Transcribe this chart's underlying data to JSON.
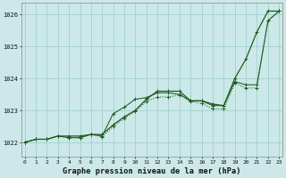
{
  "background_color": "#cce8e8",
  "grid_color": "#99cccc",
  "line_color": "#1e5c1e",
  "xlim_min": -0.3,
  "xlim_max": 23.3,
  "ylim_min": 1021.55,
  "ylim_max": 1026.35,
  "yticks": [
    1022,
    1023,
    1024,
    1025,
    1026
  ],
  "xticks": [
    0,
    1,
    2,
    3,
    4,
    5,
    6,
    7,
    8,
    9,
    10,
    11,
    12,
    13,
    14,
    15,
    16,
    17,
    18,
    19,
    20,
    21,
    22,
    23
  ],
  "xlabel": "Graphe pression niveau de la mer (hPa)",
  "line1_y": [
    1022.0,
    1022.1,
    1022.1,
    1022.2,
    1022.2,
    1022.2,
    1022.25,
    1022.25,
    1022.55,
    1022.8,
    1023.0,
    1023.35,
    1023.6,
    1023.6,
    1023.6,
    1023.3,
    1023.3,
    1023.2,
    1023.15,
    1024.0,
    1024.6,
    1025.45,
    1026.1,
    1026.1
  ],
  "line2_y": [
    1022.0,
    1022.1,
    1022.1,
    1022.2,
    1022.15,
    1022.15,
    1022.25,
    1022.2,
    1022.9,
    1023.1,
    1023.35,
    1023.4,
    1023.55,
    1023.55,
    1023.5,
    1023.3,
    1023.3,
    1023.15,
    1023.15,
    1023.9,
    1023.8,
    1023.8,
    1025.8,
    1026.1
  ],
  "line3_y": [
    1022.0,
    1022.1,
    1022.1,
    1022.2,
    1022.15,
    1022.15,
    1022.25,
    1022.18,
    1022.5,
    1022.75,
    1022.98,
    1023.28,
    1023.42,
    1023.42,
    1023.48,
    1023.28,
    1023.22,
    1023.05,
    1023.05,
    1023.85,
    1023.7,
    1023.7,
    1025.8,
    1026.1
  ]
}
